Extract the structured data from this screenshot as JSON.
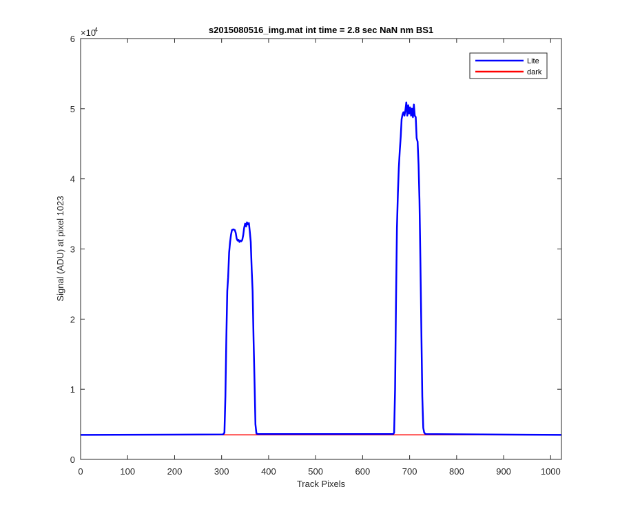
{
  "chart_data": {
    "type": "line",
    "title": "s2015080516_img.mat int time = 2.8 sec  NaN nm BS1",
    "xlabel": "Track Pixels",
    "ylabel": "Signal (ADU) at pixel 1023",
    "y_exponent_label": "×10",
    "y_exponent_power": "4",
    "xlim": [
      0,
      1023
    ],
    "ylim": [
      0,
      60000
    ],
    "x_ticks": [
      0,
      100,
      200,
      300,
      400,
      500,
      600,
      700,
      800,
      900,
      1000
    ],
    "x_tick_labels": [
      "0",
      "100",
      "200",
      "300",
      "400",
      "500",
      "600",
      "700",
      "800",
      "900",
      "1000"
    ],
    "y_ticks": [
      0,
      10000,
      20000,
      30000,
      40000,
      50000,
      60000
    ],
    "y_tick_labels": [
      "0",
      "1",
      "2",
      "3",
      "4",
      "5",
      "6"
    ],
    "grid": false,
    "legend_position": "top-right",
    "series": [
      {
        "name": "Lite",
        "color": "#0000ff",
        "points": [
          [
            0,
            3500
          ],
          [
            303,
            3550
          ],
          [
            306,
            3800
          ],
          [
            308,
            9000
          ],
          [
            310,
            17000
          ],
          [
            312,
            24000
          ],
          [
            314,
            26000
          ],
          [
            316,
            29500
          ],
          [
            318,
            31000
          ],
          [
            320,
            32000
          ],
          [
            322,
            32700
          ],
          [
            325,
            32800
          ],
          [
            328,
            32700
          ],
          [
            330,
            32300
          ],
          [
            332,
            31500
          ],
          [
            334,
            31200
          ],
          [
            336,
            31300
          ],
          [
            338,
            31000
          ],
          [
            340,
            31200
          ],
          [
            342,
            31100
          ],
          [
            344,
            31300
          ],
          [
            346,
            32000
          ],
          [
            348,
            33000
          ],
          [
            350,
            33600
          ],
          [
            352,
            33200
          ],
          [
            354,
            33800
          ],
          [
            356,
            33500
          ],
          [
            358,
            33700
          ],
          [
            360,
            32500
          ],
          [
            362,
            31000
          ],
          [
            364,
            27000
          ],
          [
            366,
            24000
          ],
          [
            368,
            17000
          ],
          [
            370,
            11000
          ],
          [
            372,
            5000
          ],
          [
            374,
            3700
          ],
          [
            377,
            3600
          ],
          [
            665,
            3600
          ],
          [
            667,
            3800
          ],
          [
            669,
            10000
          ],
          [
            671,
            22000
          ],
          [
            673,
            33000
          ],
          [
            675,
            38000
          ],
          [
            677,
            41500
          ],
          [
            679,
            44000
          ],
          [
            681,
            46000
          ],
          [
            683,
            48500
          ],
          [
            685,
            49200
          ],
          [
            687,
            49500
          ],
          [
            689,
            49000
          ],
          [
            691,
            49800
          ],
          [
            693,
            50900
          ],
          [
            695,
            49000
          ],
          [
            697,
            50500
          ],
          [
            699,
            49300
          ],
          [
            701,
            50200
          ],
          [
            703,
            49000
          ],
          [
            705,
            50000
          ],
          [
            707,
            48800
          ],
          [
            709,
            50600
          ],
          [
            711,
            49000
          ],
          [
            713,
            48800
          ],
          [
            715,
            45800
          ],
          [
            717,
            45300
          ],
          [
            719,
            42000
          ],
          [
            721,
            37000
          ],
          [
            723,
            28000
          ],
          [
            725,
            18000
          ],
          [
            727,
            9000
          ],
          [
            729,
            4500
          ],
          [
            731,
            3800
          ],
          [
            734,
            3600
          ],
          [
            1023,
            3500
          ]
        ]
      },
      {
        "name": "dark",
        "color": "#ff0000",
        "points": [
          [
            0,
            3500
          ],
          [
            300,
            3500
          ],
          [
            600,
            3500
          ],
          [
            1023,
            3500
          ]
        ]
      }
    ]
  }
}
